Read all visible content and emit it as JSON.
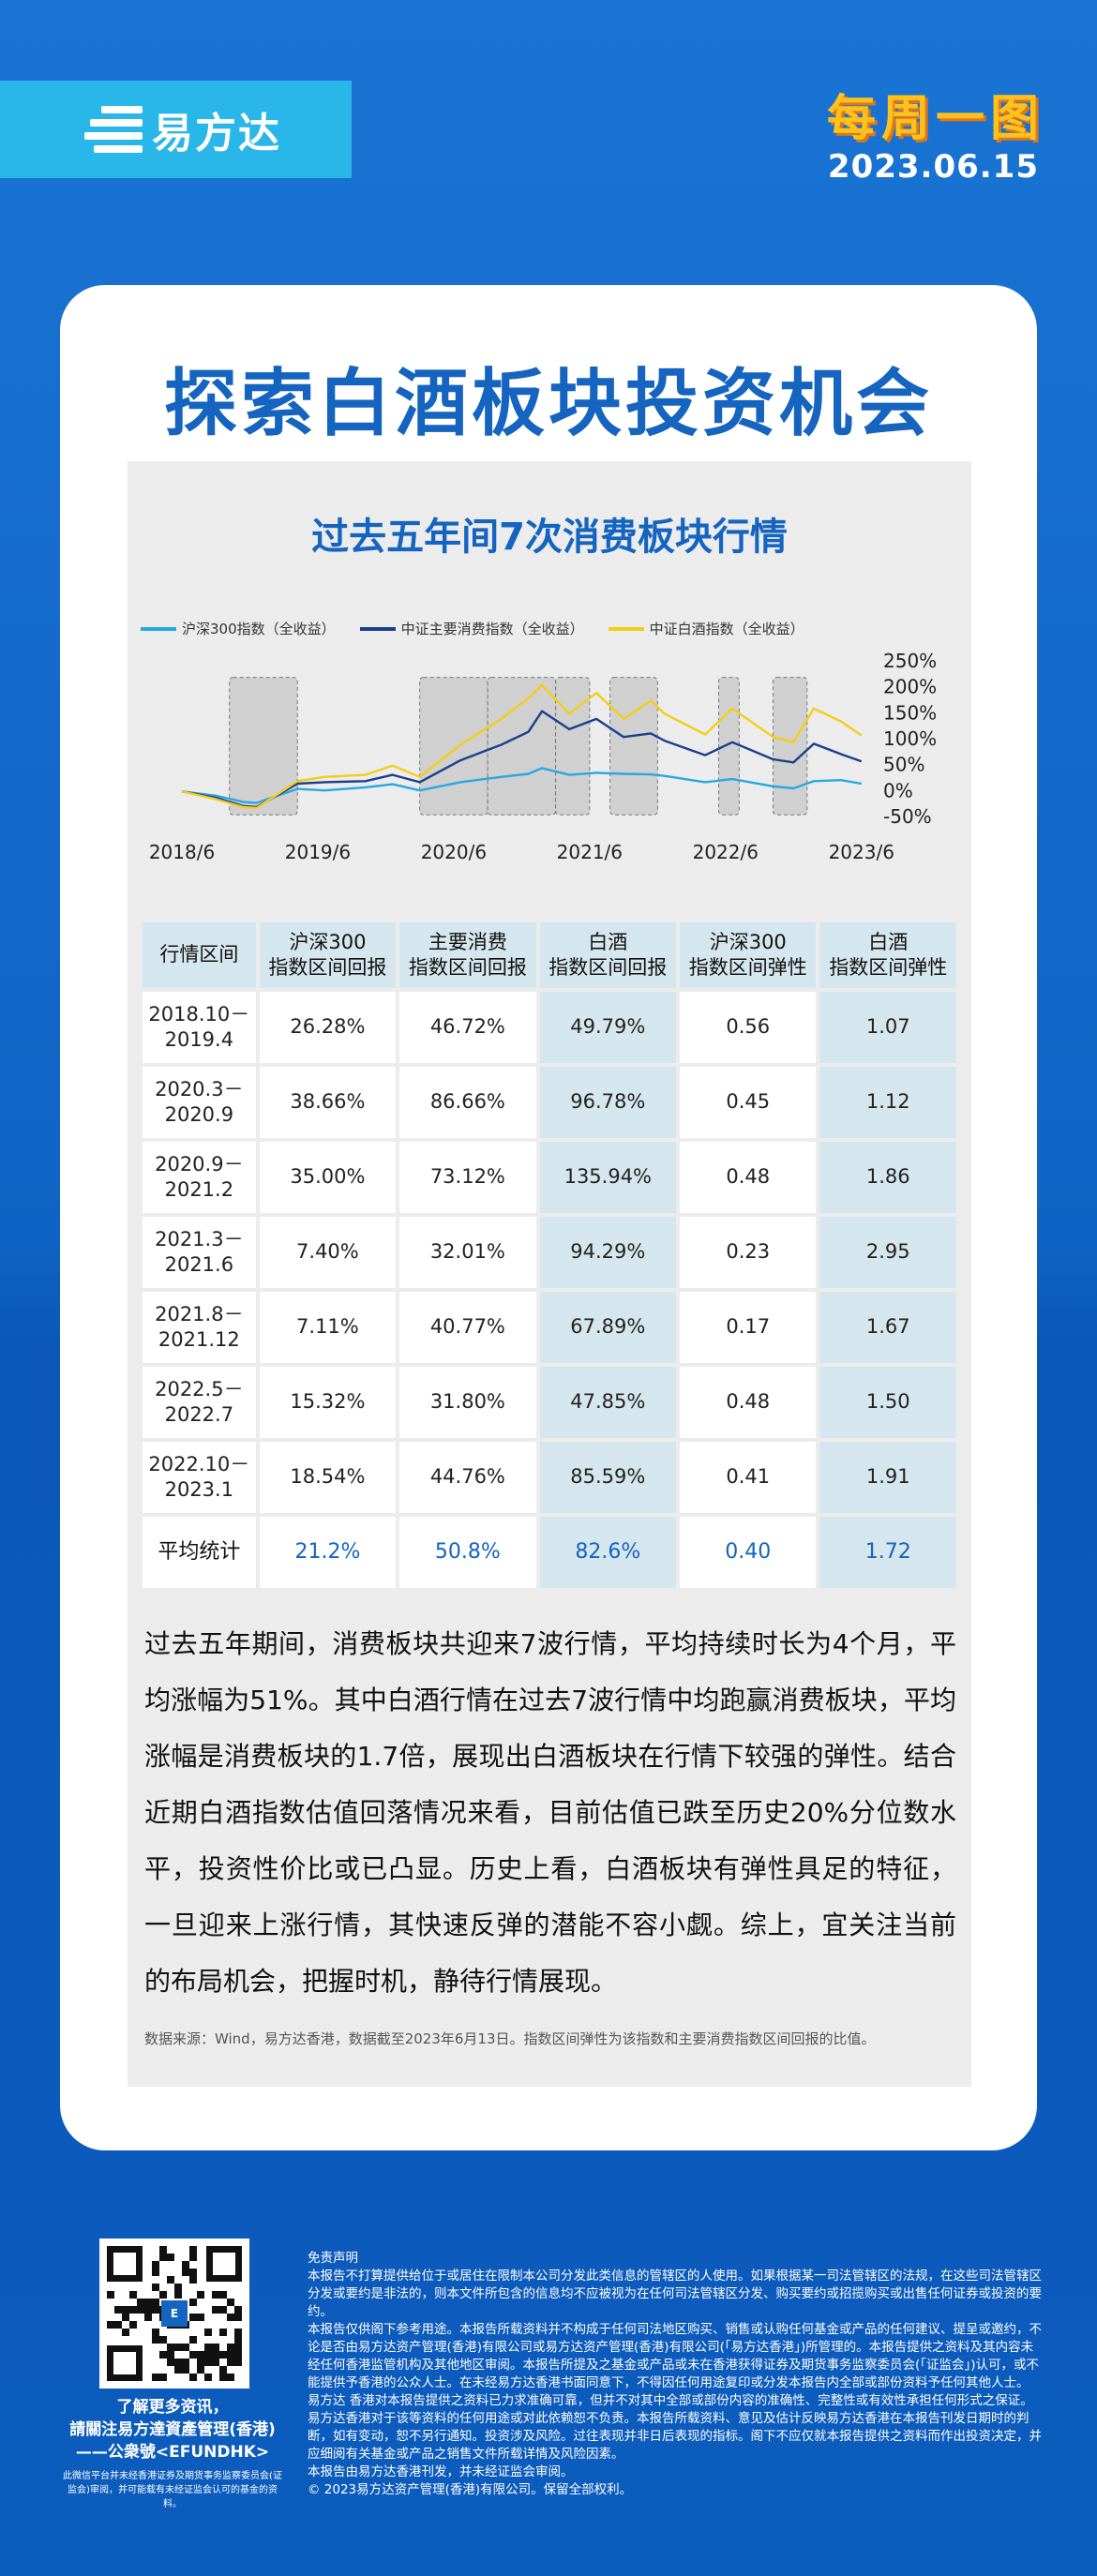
{
  "header": {
    "brand": "易方达",
    "badge": [
      "每",
      "周",
      "一",
      "图"
    ],
    "date": "2023.06.15"
  },
  "card": {
    "title": "探索白酒板块投资机会"
  },
  "chart_data": {
    "type": "line",
    "title": "过去五年间7次消费板块行情",
    "legend_position": "top",
    "x_ticks": [
      "2018/6",
      "2019/6",
      "2020/6",
      "2021/6",
      "2022/6",
      "2023/6"
    ],
    "y_ticks": [
      "250%",
      "200%",
      "150%",
      "100%",
      "50%",
      "0%",
      "-50%"
    ],
    "ylim": [
      -50,
      250
    ],
    "xlim": [
      2018.45,
      2023.5
    ],
    "series": [
      {
        "name": "沪深300指数（全收益）",
        "color": "#29a8e0",
        "points": [
          [
            2018.45,
            0
          ],
          [
            2018.7,
            -8
          ],
          [
            2018.9,
            -20
          ],
          [
            2019.0,
            -22
          ],
          [
            2019.3,
            5
          ],
          [
            2019.5,
            2
          ],
          [
            2019.8,
            8
          ],
          [
            2020.0,
            14
          ],
          [
            2020.2,
            2
          ],
          [
            2020.5,
            18
          ],
          [
            2020.8,
            28
          ],
          [
            2021.0,
            34
          ],
          [
            2021.1,
            45
          ],
          [
            2021.3,
            32
          ],
          [
            2021.5,
            36
          ],
          [
            2021.7,
            34
          ],
          [
            2021.9,
            33
          ],
          [
            2022.0,
            30
          ],
          [
            2022.3,
            18
          ],
          [
            2022.5,
            24
          ],
          [
            2022.8,
            10
          ],
          [
            2022.95,
            6
          ],
          [
            2023.1,
            20
          ],
          [
            2023.3,
            22
          ],
          [
            2023.45,
            15
          ]
        ]
      },
      {
        "name": "中证主要消费指数（全收益）",
        "color": "#1b3f8c",
        "points": [
          [
            2018.45,
            0
          ],
          [
            2018.7,
            -12
          ],
          [
            2018.9,
            -28
          ],
          [
            2019.0,
            -30
          ],
          [
            2019.3,
            15
          ],
          [
            2019.5,
            18
          ],
          [
            2019.8,
            20
          ],
          [
            2020.0,
            32
          ],
          [
            2020.2,
            18
          ],
          [
            2020.5,
            60
          ],
          [
            2020.8,
            90
          ],
          [
            2021.0,
            115
          ],
          [
            2021.1,
            155
          ],
          [
            2021.3,
            120
          ],
          [
            2021.5,
            140
          ],
          [
            2021.7,
            105
          ],
          [
            2021.9,
            112
          ],
          [
            2022.0,
            98
          ],
          [
            2022.3,
            70
          ],
          [
            2022.5,
            95
          ],
          [
            2022.8,
            62
          ],
          [
            2022.95,
            56
          ],
          [
            2023.1,
            92
          ],
          [
            2023.3,
            72
          ],
          [
            2023.45,
            58
          ]
        ]
      },
      {
        "name": "中证白酒指数（全收益）",
        "color": "#f5cd18",
        "points": [
          [
            2018.45,
            0
          ],
          [
            2018.7,
            -15
          ],
          [
            2018.9,
            -30
          ],
          [
            2019.0,
            -32
          ],
          [
            2019.3,
            20
          ],
          [
            2019.5,
            28
          ],
          [
            2019.8,
            32
          ],
          [
            2020.0,
            50
          ],
          [
            2020.2,
            28
          ],
          [
            2020.5,
            90
          ],
          [
            2020.8,
            140
          ],
          [
            2021.0,
            180
          ],
          [
            2021.1,
            205
          ],
          [
            2021.3,
            150
          ],
          [
            2021.5,
            190
          ],
          [
            2021.7,
            140
          ],
          [
            2021.9,
            175
          ],
          [
            2022.0,
            150
          ],
          [
            2022.3,
            110
          ],
          [
            2022.5,
            160
          ],
          [
            2022.8,
            105
          ],
          [
            2022.95,
            95
          ],
          [
            2023.1,
            160
          ],
          [
            2023.3,
            135
          ],
          [
            2023.45,
            108
          ]
        ]
      }
    ],
    "shaded_periods": [
      [
        2018.8,
        2019.3
      ],
      [
        2020.2,
        2020.7
      ],
      [
        2020.7,
        2021.2
      ],
      [
        2021.2,
        2021.45
      ],
      [
        2021.6,
        2021.95
      ],
      [
        2022.4,
        2022.55
      ],
      [
        2022.8,
        2023.05
      ]
    ]
  },
  "table": {
    "headers": [
      "行情区间",
      "沪深300\n指数区间回报",
      "主要消费\n指数区间回报",
      "白酒\n指数区间回报",
      "沪深300\n指数区间弹性",
      "白酒\n指数区间弹性"
    ],
    "rows": [
      [
        "2018.10－\n2019.4",
        "26.28%",
        "46.72%",
        "49.79%",
        "0.56",
        "1.07"
      ],
      [
        "2020.3－\n2020.9",
        "38.66%",
        "86.66%",
        "96.78%",
        "0.45",
        "1.12"
      ],
      [
        "2020.9－\n2021.2",
        "35.00%",
        "73.12%",
        "135.94%",
        "0.48",
        "1.86"
      ],
      [
        "2021.3－\n2021.6",
        "7.40%",
        "32.01%",
        "94.29%",
        "0.23",
        "2.95"
      ],
      [
        "2021.8－\n2021.12",
        "7.11%",
        "40.77%",
        "67.89%",
        "0.17",
        "1.67"
      ],
      [
        "2022.5－\n2022.7",
        "15.32%",
        "31.80%",
        "47.85%",
        "0.48",
        "1.50"
      ],
      [
        "2022.10－\n2023.1",
        "18.54%",
        "44.76%",
        "85.59%",
        "0.41",
        "1.91"
      ]
    ],
    "average": [
      "平均统计",
      "21.2%",
      "50.8%",
      "82.6%",
      "0.40",
      "1.72"
    ]
  },
  "body_text": "过去五年期间，消费板块共迎来7波行情，平均持续时长为4个月，平均涨幅为51%。其中白酒行情在过去7波行情中均跑赢消费板块，平均涨幅是消费板块的1.7倍，展现出白酒板块在行情下较强的弹性。结合近期白酒指数估值回落情况来看，目前估值已跌至历史20%分位数水平，投资性价比或已凸显。历史上看，白酒板块有弹性具足的特征，一旦迎来上涨行情，其快速反弹的潜能不容小觑。综上，宜关注当前的布局机会，把握时机，静待行情展现。",
  "source_note": "数据来源：Wind，易方达香港，数据截至2023年6月13日。指数区间弹性为该指数和主要消费指数区间回报的比值。",
  "footer": {
    "qr_center": "E",
    "cta": "了解更多资讯，\n請關注易方達資產管理(香港)\n——公衆號<EFUNDHK>",
    "qr_note": "此微信平台并未经香港证券及期货事务监察委员会(证监会)审阅，并可能载有未经证监会认可的基金的资料。",
    "disclaimer": [
      "免责声明",
      "本报告不打算提供给位于或居住在限制本公司分发此类信息的管辖区的人使用。如果根据某一司法管辖区的法规，在这些司法管辖区分发或要约是非法的，则本文件所包含的信息均不应被视为在任何司法管辖区分发、购买要约或招揽购买或出售任何证券或投资的要约。",
      "本报告仅供阁下参考用途。本报告所载资料并不构成于任何司法地区购买、销售或认购任何基金或产品的任何建议、提呈或邀约，不论是否由易方达资产管理(香港)有限公司或易方达资产管理(香港)有限公司(「易方达香港」)所管理的。本报告提供之资料及其内容未经任何香港监管机构及其他地区审阅。本报告所提及之基金或产品或未在香港获得证券及期货事务监察委员会(「证监会」)认可，或不能提供予香港的公众人士。在未经易方达香港书面同意下，不得因任何用途复印或分发本报告内全部或部份资料予任何其他人士。",
      "易方达 香港对本报告提供之资料已力求准确可靠，但并不对其中全部或部份内容的准确性、完整性或有效性承担任何形式之保证。易方达香港对于该等资料的任何用途或对此依赖恕不负责。本报告所载资料、意见及估计反映易方达香港在本报告刊发日期时的判断，如有变动，恕不另行通知。投资涉及风险。过往表现并非日后表现的指标。阁下不应仅就本报告提供之资料而作出投资决定，并应细阅有关基金或产品之销售文件所载详情及风险因素。",
      "本报告由易方达香港刊发，并未经证监会审阅。",
      "© 2023易方达资产管理(香港)有限公司。保留全部权利。"
    ]
  }
}
